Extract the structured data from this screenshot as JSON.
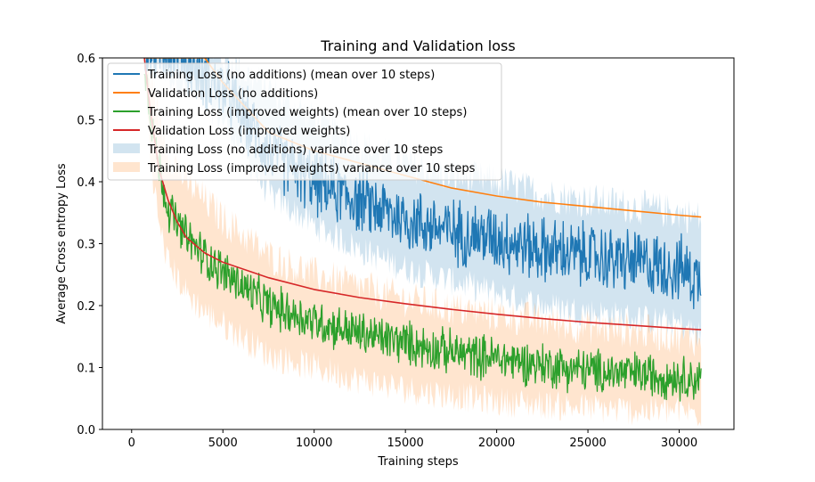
{
  "chart_data": {
    "type": "line",
    "title": "Training and Validation loss",
    "xlabel": "Training steps",
    "ylabel": "Average Cross entropy Loss",
    "xlim": [
      -1600,
      33000
    ],
    "ylim": [
      0,
      0.6
    ],
    "xticks": [
      0,
      5000,
      10000,
      15000,
      20000,
      25000,
      30000
    ],
    "yticks": [
      0.0,
      0.1,
      0.2,
      0.3,
      0.4,
      0.5,
      0.6
    ],
    "xtick_labels": [
      "0",
      "5000",
      "10000",
      "15000",
      "20000",
      "25000",
      "30000"
    ],
    "ytick_labels": [
      "0.0",
      "0.1",
      "0.2",
      "0.3",
      "0.4",
      "0.5",
      "0.6"
    ],
    "grid": false,
    "legend_position": "upper-left",
    "series": [
      {
        "name": "Training Loss (no additions) (mean over 10 steps)",
        "kind": "line",
        "color": "#1f77b4",
        "x": [
          700,
          1500,
          2500,
          3500,
          5000,
          7500,
          10000,
          12500,
          15000,
          17500,
          20000,
          22500,
          25000,
          27500,
          30000,
          31200
        ],
        "y": [
          0.6,
          0.62,
          0.61,
          0.58,
          0.55,
          0.45,
          0.4,
          0.37,
          0.34,
          0.32,
          0.31,
          0.29,
          0.28,
          0.27,
          0.26,
          0.24
        ]
      },
      {
        "name": "Validation Loss (no additions)",
        "kind": "line",
        "color": "#ff7f0e",
        "x": [
          700,
          2000,
          4000,
          5000,
          7500,
          10000,
          12500,
          15000,
          17500,
          20000,
          22500,
          25000,
          27500,
          30000,
          31200
        ],
        "y": [
          0.6,
          0.6,
          0.6,
          0.56,
          0.48,
          0.45,
          0.43,
          0.41,
          0.39,
          0.377,
          0.367,
          0.36,
          0.353,
          0.346,
          0.343
        ]
      },
      {
        "name": "Training Loss (improved weights) (mean over 10 steps)",
        "kind": "line",
        "color": "#2ca02c",
        "x": [
          700,
          1000,
          1500,
          2000,
          2500,
          3000,
          4000,
          5000,
          7500,
          10000,
          12500,
          15000,
          17500,
          20000,
          22500,
          25000,
          27500,
          30000,
          31200
        ],
        "y": [
          0.6,
          0.52,
          0.42,
          0.36,
          0.33,
          0.31,
          0.28,
          0.255,
          0.2,
          0.175,
          0.155,
          0.14,
          0.125,
          0.115,
          0.105,
          0.095,
          0.09,
          0.085,
          0.08
        ]
      },
      {
        "name": "Validation Loss (improved weights)",
        "kind": "line",
        "color": "#d62728",
        "x": [
          700,
          1000,
          1500,
          2000,
          2500,
          3000,
          4000,
          5000,
          7500,
          10000,
          12500,
          15000,
          17500,
          20000,
          22500,
          25000,
          27500,
          30000,
          31200
        ],
        "y": [
          0.6,
          0.52,
          0.42,
          0.37,
          0.335,
          0.31,
          0.285,
          0.27,
          0.245,
          0.226,
          0.213,
          0.203,
          0.194,
          0.186,
          0.179,
          0.173,
          0.168,
          0.163,
          0.161
        ]
      },
      {
        "name": "Training Loss (no additions) variance over 10 steps",
        "kind": "band",
        "color": "#1f77b4",
        "opacity": 0.2,
        "x": [
          700,
          2500,
          5000,
          7500,
          10000,
          12500,
          15000,
          17500,
          20000,
          22500,
          25000,
          27500,
          30000,
          31200
        ],
        "lower": [
          0.6,
          0.56,
          0.5,
          0.38,
          0.33,
          0.29,
          0.26,
          0.24,
          0.22,
          0.2,
          0.19,
          0.18,
          0.17,
          0.15
        ],
        "upper": [
          0.6,
          0.66,
          0.6,
          0.55,
          0.5,
          0.46,
          0.43,
          0.41,
          0.4,
          0.38,
          0.37,
          0.36,
          0.35,
          0.34
        ]
      },
      {
        "name": "Training Loss (improved weights) variance over 10 steps",
        "kind": "band",
        "color": "#ff7f0e",
        "opacity": 0.2,
        "x": [
          700,
          1000,
          1500,
          2000,
          3000,
          4000,
          5000,
          7500,
          10000,
          12500,
          15000,
          17500,
          20000,
          22500,
          25000,
          27500,
          30000,
          31200
        ],
        "lower": [
          0.6,
          0.45,
          0.33,
          0.27,
          0.22,
          0.19,
          0.17,
          0.12,
          0.1,
          0.08,
          0.065,
          0.055,
          0.045,
          0.04,
          0.035,
          0.03,
          0.03,
          0.025
        ],
        "upper": [
          0.6,
          0.58,
          0.5,
          0.45,
          0.4,
          0.37,
          0.34,
          0.28,
          0.25,
          0.23,
          0.21,
          0.195,
          0.185,
          0.175,
          0.165,
          0.16,
          0.15,
          0.145
        ]
      }
    ]
  }
}
